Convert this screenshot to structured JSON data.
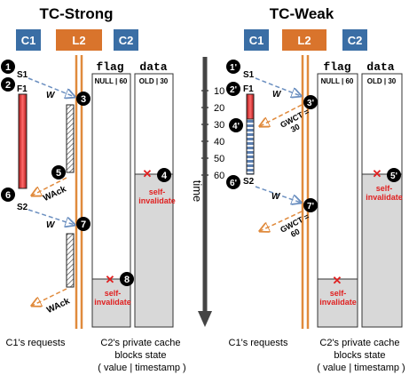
{
  "left": {
    "title": "TC-Strong",
    "nodes": {
      "c1": "C1",
      "l2": "L2",
      "c2": "C2"
    },
    "s1": "S1",
    "f1": "F1",
    "s2": "S2",
    "msg": {
      "w1": "W",
      "wack1": "WAck",
      "w2": "W",
      "wack2": "WAck"
    },
    "steps": [
      "1",
      "2",
      "3",
      "4",
      "5",
      "6",
      "7",
      "8"
    ],
    "cols": {
      "flag": "flag",
      "data": "data"
    },
    "flag_state": "NULL | 60",
    "data_state": "OLD | 30",
    "self_inv_4": "self-\ninvalidate",
    "self_inv_8": "self-\ninvalidate",
    "caption_requests": "C1's requests",
    "caption_cache": "C2's private cache\nblocks state\n( value | timestamp )"
  },
  "right": {
    "title": "TC-Weak",
    "nodes": {
      "c1": "C1",
      "l2": "L2",
      "c2": "C2"
    },
    "s1": "S1",
    "f1": "F1",
    "s2": "S2",
    "msg": {
      "w1": "W",
      "gwct1": "GWCT =\n30",
      "w2": "W",
      "gwct2": "GWCT =\n60"
    },
    "steps": [
      "1'",
      "2'",
      "3'",
      "4'",
      "5'",
      "6'",
      "7'"
    ],
    "cols": {
      "flag": "flag",
      "data": "data"
    },
    "flag_state": "NULL | 60",
    "data_state": "OLD | 30",
    "self_inv_5": "self-\ninvalidate",
    "self_inv_flag": "self-\ninvalidate",
    "caption_requests": "C1's requests",
    "caption_cache": "C2's private cache\nblocks state\n( value | timestamp )"
  },
  "time_axis": {
    "label": "time",
    "ticks": [
      "10",
      "20",
      "30",
      "40",
      "50",
      "60"
    ]
  },
  "colors": {
    "core": "#3a6ea5",
    "l2": "#d9742c",
    "arrow_blue": "#6b8fc0",
    "arrow_orange": "#e08a3c",
    "red": "#e02020",
    "gray_fill": "#d8d8d8",
    "red_bar": "#e04040"
  }
}
